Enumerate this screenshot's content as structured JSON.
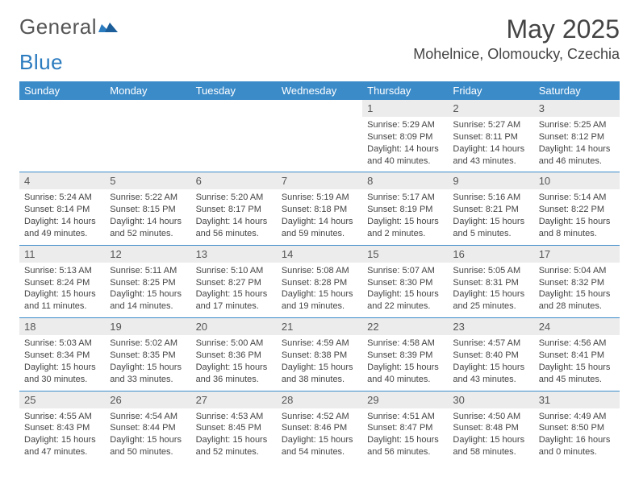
{
  "logo": {
    "part1": "General",
    "part2": "Blue"
  },
  "title": "May 2025",
  "location": "Mohelnice, Olomoucky, Czechia",
  "day_headers": [
    "Sunday",
    "Monday",
    "Tuesday",
    "Wednesday",
    "Thursday",
    "Friday",
    "Saturday"
  ],
  "colors": {
    "header_bg": "#3b8bc9",
    "header_text": "#ffffff",
    "daynum_bg": "#ececec",
    "text": "#444444"
  },
  "weeks": [
    [
      null,
      null,
      null,
      null,
      {
        "n": "1",
        "sunrise": "5:29 AM",
        "sunset": "8:09 PM",
        "day_h": "14",
        "day_m": "40"
      },
      {
        "n": "2",
        "sunrise": "5:27 AM",
        "sunset": "8:11 PM",
        "day_h": "14",
        "day_m": "43"
      },
      {
        "n": "3",
        "sunrise": "5:25 AM",
        "sunset": "8:12 PM",
        "day_h": "14",
        "day_m": "46"
      }
    ],
    [
      {
        "n": "4",
        "sunrise": "5:24 AM",
        "sunset": "8:14 PM",
        "day_h": "14",
        "day_m": "49"
      },
      {
        "n": "5",
        "sunrise": "5:22 AM",
        "sunset": "8:15 PM",
        "day_h": "14",
        "day_m": "52"
      },
      {
        "n": "6",
        "sunrise": "5:20 AM",
        "sunset": "8:17 PM",
        "day_h": "14",
        "day_m": "56"
      },
      {
        "n": "7",
        "sunrise": "5:19 AM",
        "sunset": "8:18 PM",
        "day_h": "14",
        "day_m": "59"
      },
      {
        "n": "8",
        "sunrise": "5:17 AM",
        "sunset": "8:19 PM",
        "day_h": "15",
        "day_m": "2"
      },
      {
        "n": "9",
        "sunrise": "5:16 AM",
        "sunset": "8:21 PM",
        "day_h": "15",
        "day_m": "5"
      },
      {
        "n": "10",
        "sunrise": "5:14 AM",
        "sunset": "8:22 PM",
        "day_h": "15",
        "day_m": "8"
      }
    ],
    [
      {
        "n": "11",
        "sunrise": "5:13 AM",
        "sunset": "8:24 PM",
        "day_h": "15",
        "day_m": "11"
      },
      {
        "n": "12",
        "sunrise": "5:11 AM",
        "sunset": "8:25 PM",
        "day_h": "15",
        "day_m": "14"
      },
      {
        "n": "13",
        "sunrise": "5:10 AM",
        "sunset": "8:27 PM",
        "day_h": "15",
        "day_m": "17"
      },
      {
        "n": "14",
        "sunrise": "5:08 AM",
        "sunset": "8:28 PM",
        "day_h": "15",
        "day_m": "19"
      },
      {
        "n": "15",
        "sunrise": "5:07 AM",
        "sunset": "8:30 PM",
        "day_h": "15",
        "day_m": "22"
      },
      {
        "n": "16",
        "sunrise": "5:05 AM",
        "sunset": "8:31 PM",
        "day_h": "15",
        "day_m": "25"
      },
      {
        "n": "17",
        "sunrise": "5:04 AM",
        "sunset": "8:32 PM",
        "day_h": "15",
        "day_m": "28"
      }
    ],
    [
      {
        "n": "18",
        "sunrise": "5:03 AM",
        "sunset": "8:34 PM",
        "day_h": "15",
        "day_m": "30"
      },
      {
        "n": "19",
        "sunrise": "5:02 AM",
        "sunset": "8:35 PM",
        "day_h": "15",
        "day_m": "33"
      },
      {
        "n": "20",
        "sunrise": "5:00 AM",
        "sunset": "8:36 PM",
        "day_h": "15",
        "day_m": "36"
      },
      {
        "n": "21",
        "sunrise": "4:59 AM",
        "sunset": "8:38 PM",
        "day_h": "15",
        "day_m": "38"
      },
      {
        "n": "22",
        "sunrise": "4:58 AM",
        "sunset": "8:39 PM",
        "day_h": "15",
        "day_m": "40"
      },
      {
        "n": "23",
        "sunrise": "4:57 AM",
        "sunset": "8:40 PM",
        "day_h": "15",
        "day_m": "43"
      },
      {
        "n": "24",
        "sunrise": "4:56 AM",
        "sunset": "8:41 PM",
        "day_h": "15",
        "day_m": "45"
      }
    ],
    [
      {
        "n": "25",
        "sunrise": "4:55 AM",
        "sunset": "8:43 PM",
        "day_h": "15",
        "day_m": "47"
      },
      {
        "n": "26",
        "sunrise": "4:54 AM",
        "sunset": "8:44 PM",
        "day_h": "15",
        "day_m": "50"
      },
      {
        "n": "27",
        "sunrise": "4:53 AM",
        "sunset": "8:45 PM",
        "day_h": "15",
        "day_m": "52"
      },
      {
        "n": "28",
        "sunrise": "4:52 AM",
        "sunset": "8:46 PM",
        "day_h": "15",
        "day_m": "54"
      },
      {
        "n": "29",
        "sunrise": "4:51 AM",
        "sunset": "8:47 PM",
        "day_h": "15",
        "day_m": "56"
      },
      {
        "n": "30",
        "sunrise": "4:50 AM",
        "sunset": "8:48 PM",
        "day_h": "15",
        "day_m": "58"
      },
      {
        "n": "31",
        "sunrise": "4:49 AM",
        "sunset": "8:50 PM",
        "day_h": "16",
        "day_m": "0"
      }
    ]
  ],
  "labels": {
    "sunrise": "Sunrise:",
    "sunset": "Sunset:",
    "daylight": "Daylight:",
    "hours": "hours",
    "and": "and",
    "minutes": "minutes."
  }
}
